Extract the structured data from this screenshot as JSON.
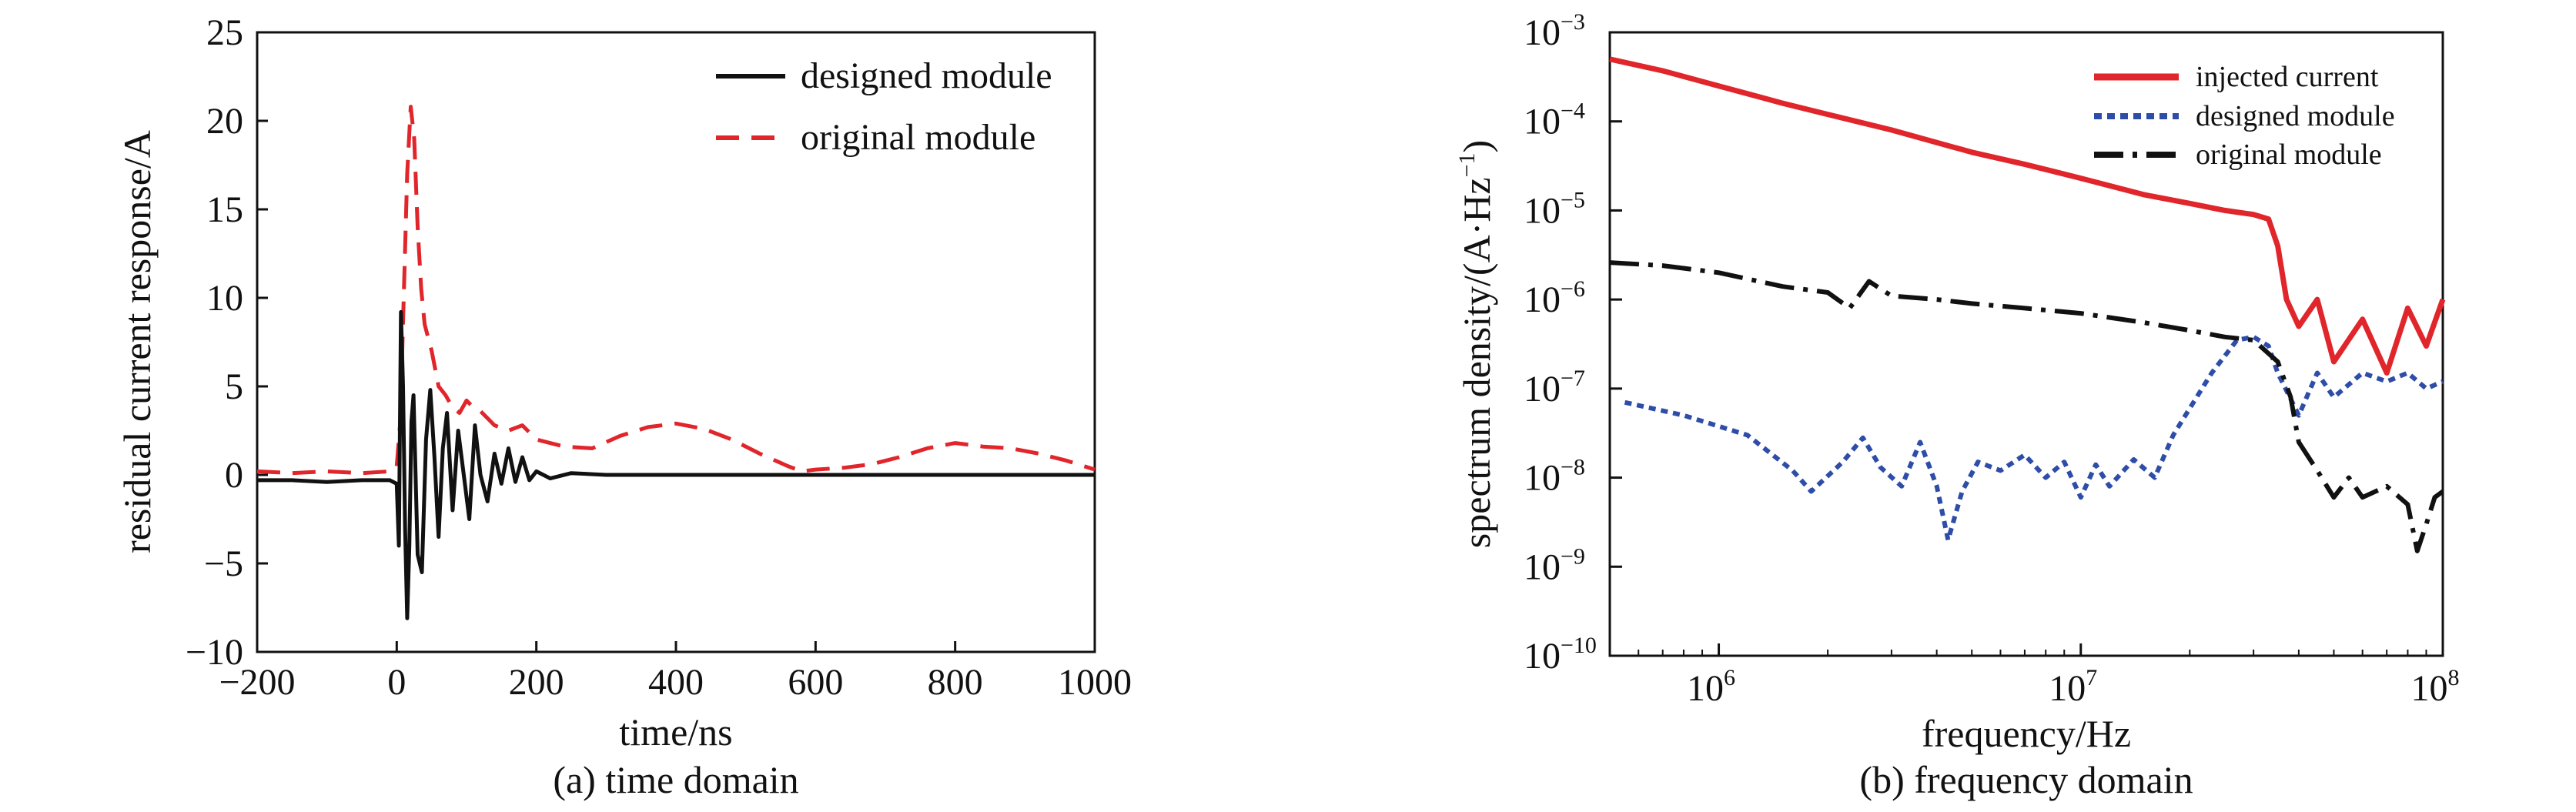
{
  "chart_data": [
    {
      "type": "line",
      "caption": "(a) time domain",
      "xlabel": "time/ns",
      "ylabel": "residual current response/A",
      "xlim": [
        -200,
        1000
      ],
      "ylim": [
        -10,
        25
      ],
      "xticks": [
        -200,
        0,
        200,
        400,
        600,
        800,
        1000
      ],
      "yticks": [
        -10,
        -5,
        0,
        5,
        10,
        15,
        20,
        25
      ],
      "grid": false,
      "legend_position": "top-right",
      "series": [
        {
          "name": "designed module",
          "color": "#111111",
          "style": "solid",
          "x": [
            -200,
            -150,
            -100,
            -50,
            -10,
            0,
            3,
            6,
            9,
            12,
            15,
            18,
            21,
            24,
            27,
            30,
            36,
            42,
            48,
            54,
            60,
            66,
            72,
            80,
            88,
            96,
            104,
            112,
            120,
            130,
            140,
            150,
            160,
            170,
            180,
            190,
            200,
            220,
            250,
            300,
            400,
            500,
            600,
            700,
            800,
            900,
            1000
          ],
          "y": [
            -0.3,
            -0.3,
            -0.4,
            -0.3,
            -0.3,
            -0.5,
            -4,
            9.2,
            5,
            -3,
            -8.1,
            -4,
            3,
            4.5,
            0,
            -4.5,
            -5.5,
            2,
            4.8,
            1,
            -3.5,
            1.5,
            3.5,
            -2,
            2.5,
            0,
            -2.5,
            2.8,
            0,
            -1.5,
            1.2,
            -0.5,
            1.5,
            -0.4,
            1.0,
            -0.3,
            0.2,
            -0.2,
            0.1,
            0,
            0,
            0,
            0,
            0,
            0,
            0,
            0
          ]
        },
        {
          "name": "original module",
          "color": "#e0262b",
          "style": "dashed",
          "x": [
            -200,
            -150,
            -100,
            -50,
            -10,
            0,
            5,
            10,
            15,
            20,
            25,
            30,
            35,
            40,
            50,
            60,
            70,
            80,
            90,
            100,
            110,
            120,
            140,
            160,
            180,
            200,
            240,
            280,
            320,
            360,
            400,
            440,
            480,
            520,
            560,
            580,
            600,
            640,
            680,
            720,
            760,
            800,
            840,
            880,
            920,
            960,
            1000
          ],
          "y": [
            0.2,
            0.1,
            0.2,
            0.1,
            0.2,
            0.5,
            3,
            10,
            17,
            20.8,
            19,
            14,
            10.5,
            8.5,
            7,
            5,
            4.5,
            3.8,
            3.5,
            4.2,
            3.8,
            3.6,
            2.8,
            2.5,
            2.8,
            2.0,
            1.6,
            1.5,
            2.2,
            2.7,
            2.9,
            2.6,
            2.0,
            1.2,
            0.5,
            0.2,
            0.3,
            0.4,
            0.6,
            1.0,
            1.5,
            1.8,
            1.6,
            1.5,
            1.2,
            0.8,
            0.3
          ]
        }
      ]
    },
    {
      "type": "line",
      "caption": "(b) frequency domain",
      "xlabel": "frequency/Hz",
      "ylabel": "spectrum density/(A·Hz",
      "ylabel_sup": "−1",
      "ylabel_close": ")",
      "xscale": "log",
      "yscale": "log",
      "xlim": [
        500000,
        100000000
      ],
      "ylim": [
        1e-10,
        0.001
      ],
      "xticks": [
        {
          "base": "10",
          "exp": "6"
        },
        {
          "base": "10",
          "exp": "7"
        },
        {
          "base": "10",
          "exp": "8"
        }
      ],
      "yticks": [
        {
          "base": "10",
          "exp": "−3"
        },
        {
          "base": "10",
          "exp": "−4"
        },
        {
          "base": "10",
          "exp": "−5"
        },
        {
          "base": "10",
          "exp": "−6"
        },
        {
          "base": "10",
          "exp": "−7"
        },
        {
          "base": "10",
          "exp": "−8"
        },
        {
          "base": "10",
          "exp": "−9"
        },
        {
          "base": "10",
          "exp": "−10"
        }
      ],
      "grid": false,
      "legend_position": "top-right",
      "series": [
        {
          "name": "injected current",
          "color": "#e0262b",
          "style": "solid",
          "x": [
            500000,
            700000,
            1000000,
            1500000,
            2000000,
            3000000,
            5000000,
            7000000,
            10000000,
            15000000,
            20000000,
            25000000,
            30000000,
            33000000,
            35000000,
            37000000,
            40000000,
            45000000,
            50000000,
            60000000,
            70000000,
            80000000,
            90000000,
            100000000
          ],
          "y": [
            0.0005,
            0.00037,
            0.00025,
            0.00016,
            0.00012,
            8e-05,
            4.5e-05,
            3.3e-05,
            2.3e-05,
            1.5e-05,
            1.2e-05,
            1e-05,
            9e-06,
            8e-06,
            4e-06,
            1e-06,
            5e-07,
            1e-06,
            2e-07,
            6e-07,
            1.5e-07,
            8e-07,
            3e-07,
            1e-06
          ]
        },
        {
          "name": "designed module",
          "color": "#2e4da8",
          "style": "dotted",
          "x": [
            550000,
            800000,
            1200000,
            1600000,
            1800000,
            2200000,
            2500000,
            2800000,
            3200000,
            3600000,
            4000000,
            4300000,
            4700000,
            5200000,
            6000000,
            7000000,
            8000000,
            9000000,
            10000000,
            11000000,
            12000000,
            14000000,
            16000000,
            18000000,
            20000000,
            23000000,
            27000000,
            30000000,
            33000000,
            35000000,
            40000000,
            45000000,
            50000000,
            60000000,
            70000000,
            80000000,
            90000000,
            100000000
          ],
          "y": [
            7e-08,
            5e-08,
            3e-08,
            1.2e-08,
            7e-09,
            1.5e-08,
            2.8e-08,
            1.3e-08,
            8e-09,
            2.5e-08,
            8e-09,
            2e-09,
            7e-09,
            1.5e-08,
            1.2e-08,
            1.8e-08,
            1e-08,
            1.5e-08,
            6e-09,
            1.4e-08,
            8e-09,
            1.6e-08,
            1e-08,
            3e-08,
            6e-08,
            1.5e-07,
            3.5e-07,
            3.8e-07,
            3e-07,
            1.5e-07,
            5e-08,
            1.5e-07,
            8e-08,
            1.5e-07,
            1.2e-07,
            1.5e-07,
            1e-07,
            1.2e-07
          ]
        },
        {
          "name": "original module",
          "color": "#111111",
          "style": "dashdot",
          "x": [
            500000,
            700000,
            1000000,
            1500000,
            2000000,
            2300000,
            2600000,
            3000000,
            4000000,
            5000000,
            7000000,
            10000000,
            15000000,
            20000000,
            25000000,
            30000000,
            35000000,
            38000000,
            40000000,
            45000000,
            50000000,
            55000000,
            60000000,
            70000000,
            80000000,
            85000000,
            90000000,
            95000000,
            100000000
          ],
          "y": [
            2.6e-06,
            2.4e-06,
            2e-06,
            1.4e-06,
            1.2e-06,
            8e-07,
            1.6e-06,
            1.1e-06,
            1e-06,
            9e-07,
            8e-07,
            7e-07,
            5.5e-07,
            4.5e-07,
            3.8e-07,
            3.5e-07,
            2e-07,
            8e-08,
            2.5e-08,
            1.2e-08,
            6e-09,
            1e-08,
            6e-09,
            8e-09,
            5e-09,
            1.5e-09,
            3e-09,
            6e-09,
            7e-09
          ]
        }
      ]
    }
  ]
}
